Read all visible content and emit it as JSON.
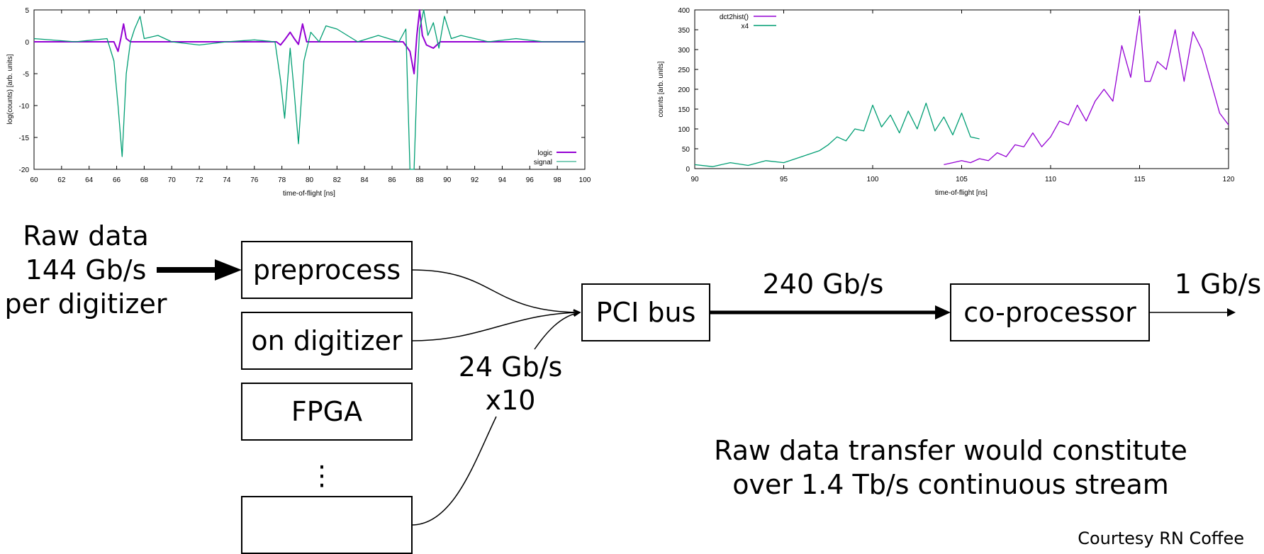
{
  "chart_data": [
    {
      "type": "line",
      "xlabel": "time-of-flight [ns]",
      "ylabel": "log(counts) [arb. units]",
      "xlim": [
        60,
        100
      ],
      "ylim": [
        -20,
        5
      ],
      "xticks": [
        "60",
        "62",
        "64",
        "66",
        "68",
        "70",
        "72",
        "74",
        "76",
        "78",
        "80",
        "82",
        "84",
        "86",
        "88",
        "90",
        "92",
        "94",
        "96",
        "98",
        "100"
      ],
      "yticks": [
        "5",
        "0",
        "-5",
        "-10",
        "-15",
        "-20"
      ],
      "legend_position": "bottom-right",
      "grid": false,
      "series": [
        {
          "name": "logic",
          "color": "#9400d3",
          "x": [
            60,
            65.8,
            66.1,
            66.3,
            66.5,
            66.7,
            67.0,
            77.6,
            77.9,
            78.2,
            78.6,
            78.9,
            79.2,
            79.5,
            79.8,
            86.8,
            87.3,
            87.6,
            87.8,
            88.0,
            88.2,
            88.5,
            89.0,
            89.5,
            100
          ],
          "y": [
            0,
            0,
            -1.5,
            0.5,
            2.8,
            0.5,
            0,
            0,
            -0.5,
            0.3,
            1.5,
            0.5,
            -0.4,
            2.8,
            0,
            0,
            -1.5,
            -5,
            1,
            5.5,
            1,
            -0.5,
            -1,
            0,
            0
          ]
        },
        {
          "name": "signal",
          "color": "#009e73",
          "x": [
            60,
            63,
            65.3,
            65.8,
            66.1,
            66.4,
            66.7,
            67.0,
            67.3,
            67.7,
            68.0,
            69,
            70,
            72,
            74,
            76,
            77.5,
            77.9,
            78.2,
            78.6,
            78.9,
            79.2,
            79.6,
            80.1,
            80.7,
            81.2,
            82,
            83.5,
            85,
            86.5,
            87.0,
            87.3,
            87.6,
            87.8,
            88.0,
            88.3,
            88.6,
            89.0,
            89.4,
            89.8,
            90.3,
            91,
            93,
            95,
            97,
            100
          ],
          "y": [
            0.5,
            0,
            0.5,
            -3,
            -10,
            -18,
            -5,
            0,
            2,
            4,
            0.5,
            1,
            0,
            -0.5,
            0,
            0.3,
            0,
            -6,
            -12,
            -1,
            -8,
            -16,
            -3,
            1.5,
            0,
            2.5,
            2,
            0,
            1,
            0,
            2,
            -20,
            -20,
            -7,
            2,
            5,
            1,
            3,
            -1,
            4,
            0.5,
            1,
            0,
            0.5,
            0,
            0
          ]
        }
      ]
    },
    {
      "type": "line",
      "xlabel": "time-of-flight [ns]",
      "ylabel": "counts [arb. units]",
      "xlim": [
        90,
        120
      ],
      "ylim": [
        0,
        400
      ],
      "xticks": [
        "90",
        "95",
        "100",
        "105",
        "110",
        "115",
        "120"
      ],
      "yticks": [
        "0",
        "50",
        "100",
        "150",
        "200",
        "250",
        "300",
        "350",
        "400"
      ],
      "legend_position": "top-left",
      "grid": false,
      "series": [
        {
          "name": "dct2hist()",
          "color": "#9400d3",
          "x": [
            104,
            104.5,
            105,
            105.5,
            106,
            106.5,
            107,
            107.5,
            108,
            108.5,
            109,
            109.5,
            110,
            110.5,
            111,
            111.5,
            112,
            112.5,
            113,
            113.5,
            114,
            114.5,
            115,
            115.3,
            115.6,
            116,
            116.5,
            117,
            117.5,
            118,
            118.5,
            119,
            119.5,
            120
          ],
          "y": [
            10,
            15,
            20,
            15,
            25,
            20,
            40,
            30,
            60,
            55,
            90,
            55,
            80,
            120,
            110,
            160,
            120,
            170,
            200,
            170,
            310,
            230,
            385,
            220,
            220,
            270,
            250,
            350,
            220,
            345,
            300,
            220,
            140,
            110
          ]
        },
        {
          "name": "x4",
          "color": "#009e73",
          "x": [
            90,
            91,
            92,
            93,
            94,
            95,
            96,
            97,
            97.5,
            98,
            98.5,
            99,
            99.5,
            100,
            100.5,
            101,
            101.5,
            102,
            102.5,
            103,
            103.5,
            104,
            104.5,
            105,
            105.5,
            106
          ],
          "y": [
            10,
            5,
            15,
            8,
            20,
            15,
            30,
            45,
            60,
            80,
            70,
            100,
            95,
            160,
            105,
            135,
            90,
            145,
            100,
            165,
            95,
            130,
            85,
            140,
            80,
            75
          ]
        }
      ]
    }
  ],
  "diagram": {
    "raw_data_lines": [
      "Raw data",
      "144 Gb/s",
      "per digitizer"
    ],
    "stack_boxes": [
      "preprocess",
      "on digitizer",
      "FPGA",
      ""
    ],
    "ellipsis": "⋮",
    "link_rate_lines": [
      "24 Gb/s",
      "x10"
    ],
    "pci_bus": "PCI bus",
    "bus_rate": "240 Gb/s",
    "coprocessor": "co-processor",
    "output_rate": "1 Gb/s",
    "note_lines": [
      "Raw data transfer would constitute",
      "over 1.4 Tb/s continuous stream"
    ],
    "credit": "Courtesy RN Coffee"
  }
}
